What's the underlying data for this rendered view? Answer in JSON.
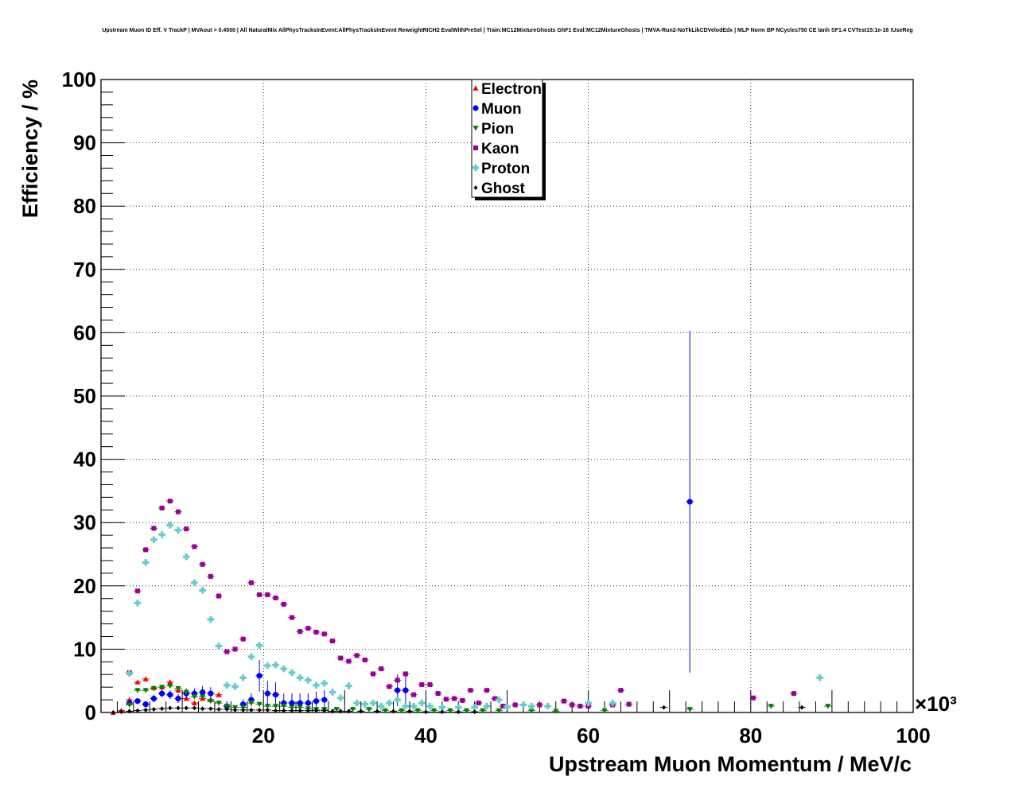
{
  "title": "Upstream Muon ID Eff. V TrackP | MVAout > 0.4500 | All NaturalMix AllPhysTracksInEvent:AllPhysTracksInEvent ReweightRICH2 EvalWithPreSel | Train:MC12MixtureGhosts GhF1 Eval:MC12MixtureGhosts | TMVA-Run2-NoTkLikCDVelodEdx | MLP Norm BP NCycles750 CE tanh SF1.4 CVTest15:1e-16 !UseReg",
  "chart_data": {
    "type": "scatter",
    "title": "Upstream Muon ID Eff. V TrackP | MVAout > 0.4500 | All NaturalMix AllPhysTracksInEvent:AllPhysTracksInEvent ReweightRICH2 EvalWithPreSel | Train:MC12MixtureGhosts GhF1 Eval:MC12MixtureGhosts | TMVA-Run2-NoTkLikCDVelodEdx | MLP Norm BP NCycles750 CE tanh SF1.4 CVTest15:1e-16 !UseReg",
    "xlabel": "Upstream Muon Momentum / MeV/c",
    "ylabel": "Efficiency / %",
    "x_multiplier": "×10³",
    "xlim": [
      0,
      100
    ],
    "ylim": [
      0,
      100
    ],
    "xticks": [
      20,
      40,
      60,
      80,
      100
    ],
    "yticks": [
      0,
      10,
      20,
      30,
      40,
      50,
      60,
      70,
      80,
      90,
      100
    ],
    "grid": true,
    "legend_position": "top-center",
    "series": [
      {
        "name": "Electron",
        "color": "#ff0000",
        "marker": "triangle-up",
        "points": [
          [
            1.5,
            0
          ],
          [
            2.5,
            0.3
          ],
          [
            3.5,
            2.0
          ],
          [
            4.5,
            4.8
          ],
          [
            5.5,
            5.3
          ],
          [
            6.5,
            3.9
          ],
          [
            7.5,
            4.0
          ],
          [
            8.5,
            4.8
          ],
          [
            9.5,
            3.5
          ],
          [
            10.5,
            2.2
          ],
          [
            11.5,
            1.5
          ],
          [
            12.5,
            2.2
          ],
          [
            13.5,
            2.0
          ],
          [
            14.5,
            2.8
          ]
        ]
      },
      {
        "name": "Muon",
        "color": "#0000ff",
        "marker": "circle",
        "points": [
          [
            3.5,
            1.5,
            0.5
          ],
          [
            4.5,
            1.8,
            0.5
          ],
          [
            5.5,
            1.3,
            0.5
          ],
          [
            6.5,
            2.2,
            0.6
          ],
          [
            7.5,
            3.0,
            0.6
          ],
          [
            8.5,
            2.8,
            0.7
          ],
          [
            9.5,
            2.2,
            0.7
          ],
          [
            10.5,
            3.0,
            0.8
          ],
          [
            11.5,
            3.0,
            0.8
          ],
          [
            12.5,
            3.2,
            1.0
          ],
          [
            13.5,
            3.0,
            1.0
          ],
          [
            15.5,
            1.0,
            0.8
          ],
          [
            17.5,
            1.3,
            0.8
          ],
          [
            18.5,
            2.0,
            1.0
          ],
          [
            19.5,
            5.8,
            2.5
          ],
          [
            20.5,
            3.0,
            2.0
          ],
          [
            21.5,
            2.8,
            2.0
          ],
          [
            22.5,
            1.5,
            1.5
          ],
          [
            23.5,
            1.5,
            1.5
          ],
          [
            24.5,
            1.5,
            1.5
          ],
          [
            25.5,
            1.5,
            1.5
          ],
          [
            26.5,
            1.8,
            1.5
          ],
          [
            27.5,
            2.0,
            1.5
          ],
          [
            36.5,
            3.5,
            2.5
          ],
          [
            37.5,
            3.5,
            2.5
          ],
          [
            72.5,
            33.3,
            27.0
          ]
        ]
      },
      {
        "name": "Pion",
        "color": "#008000",
        "marker": "triangle-down",
        "points": [
          [
            3.5,
            1.2
          ],
          [
            4.5,
            3.5
          ],
          [
            5.5,
            3.5
          ],
          [
            6.5,
            3.8
          ],
          [
            7.5,
            4.0
          ],
          [
            8.5,
            4.2
          ],
          [
            9.5,
            3.8
          ],
          [
            10.5,
            3.2
          ],
          [
            11.5,
            2.5
          ],
          [
            12.5,
            2.5
          ],
          [
            13.5,
            1.8
          ],
          [
            14.5,
            1.5
          ],
          [
            15.5,
            1.0
          ],
          [
            16.5,
            0.8
          ],
          [
            17.5,
            0.8
          ],
          [
            18.5,
            1.5
          ],
          [
            19.5,
            1.3
          ],
          [
            20.5,
            1.0
          ],
          [
            21.5,
            1.0
          ],
          [
            22.5,
            1.0
          ],
          [
            23.5,
            0.8
          ],
          [
            24.5,
            0.8
          ],
          [
            25.5,
            0.6
          ],
          [
            26.5,
            0.5
          ],
          [
            27.5,
            0.5
          ],
          [
            29,
            0.5
          ],
          [
            31,
            0.5
          ],
          [
            33,
            0.5
          ],
          [
            35,
            0.3
          ],
          [
            37,
            0.3
          ],
          [
            39,
            0.3
          ],
          [
            41,
            0.3
          ],
          [
            43,
            0.3
          ],
          [
            45,
            0.3
          ],
          [
            47,
            0.3
          ],
          [
            49,
            0.3
          ],
          [
            53,
            0.3
          ],
          [
            56,
            0.2
          ],
          [
            62,
            0.3
          ],
          [
            72.5,
            0.5
          ],
          [
            82.5,
            1.0
          ],
          [
            89.5,
            1.0
          ]
        ]
      },
      {
        "name": "Kaon",
        "color": "#990099",
        "marker": "square",
        "points": [
          [
            3.5,
            6.3
          ],
          [
            4.5,
            19.2
          ],
          [
            5.5,
            25.7
          ],
          [
            6.5,
            29.1
          ],
          [
            7.5,
            32.3
          ],
          [
            8.5,
            33.4
          ],
          [
            9.5,
            31.7
          ],
          [
            10.5,
            29.0
          ],
          [
            11.5,
            26.2
          ],
          [
            12.5,
            23.4
          ],
          [
            13.5,
            21.5
          ],
          [
            14.5,
            18.4
          ],
          [
            15.5,
            9.6
          ],
          [
            16.5,
            10.0
          ],
          [
            17.5,
            11.6
          ],
          [
            18.5,
            20.5
          ],
          [
            19.5,
            18.6
          ],
          [
            20.5,
            18.6
          ],
          [
            21.5,
            18.1
          ],
          [
            22.5,
            17.1
          ],
          [
            23.5,
            15.0
          ],
          [
            24.5,
            12.8
          ],
          [
            25.5,
            13.3
          ],
          [
            26.5,
            12.7
          ],
          [
            27.5,
            12.4
          ],
          [
            28.5,
            11.3
          ],
          [
            29.5,
            8.6
          ],
          [
            30.5,
            8.1
          ],
          [
            31.5,
            9.0
          ],
          [
            32.5,
            8.3
          ],
          [
            33.5,
            6.1
          ],
          [
            34.5,
            6.9
          ],
          [
            35.5,
            4.1
          ],
          [
            36.5,
            5.1
          ],
          [
            37.5,
            6.1
          ],
          [
            38.5,
            2.8
          ],
          [
            39.5,
            4.4
          ],
          [
            40.5,
            4.4
          ],
          [
            41.5,
            3.0
          ],
          [
            42.5,
            2.1
          ],
          [
            43.5,
            2.2
          ],
          [
            44.5,
            1.9
          ],
          [
            45.5,
            3.5
          ],
          [
            46.5,
            1.5
          ],
          [
            47.5,
            3.5
          ],
          [
            48.5,
            2.2
          ],
          [
            49.5,
            1.0
          ],
          [
            51,
            1.2
          ],
          [
            54,
            1.2
          ],
          [
            57,
            1.8
          ],
          [
            58,
            1.2
          ],
          [
            59,
            1.0
          ],
          [
            60,
            1.0
          ],
          [
            63,
            1.2
          ],
          [
            64,
            3.5
          ],
          [
            65,
            1.3
          ],
          [
            80.3,
            2.3
          ],
          [
            85.3,
            3.0
          ]
        ]
      },
      {
        "name": "Proton",
        "color": "#66cccc",
        "marker": "cross",
        "points": [
          [
            3.5,
            6.2
          ],
          [
            4.5,
            17.3
          ],
          [
            5.5,
            23.7
          ],
          [
            6.5,
            27.3
          ],
          [
            7.5,
            28.1
          ],
          [
            8.5,
            29.6
          ],
          [
            9.5,
            28.8
          ],
          [
            10.5,
            24.6
          ],
          [
            11.5,
            20.5
          ],
          [
            12.5,
            19.3
          ],
          [
            13.5,
            14.7
          ],
          [
            14.5,
            10.5
          ],
          [
            15.5,
            4.3
          ],
          [
            16.5,
            4.1
          ],
          [
            17.5,
            5.5
          ],
          [
            18.5,
            8.8
          ],
          [
            19.5,
            10.6
          ],
          [
            20.5,
            7.4
          ],
          [
            21.5,
            7.5
          ],
          [
            22.5,
            6.9
          ],
          [
            23.5,
            6.3
          ],
          [
            24.5,
            5.5
          ],
          [
            25.5,
            5.1
          ],
          [
            26.5,
            4.3
          ],
          [
            27.5,
            4.6
          ],
          [
            28.5,
            3.2
          ],
          [
            29.5,
            2.3
          ],
          [
            30.5,
            4.2
          ],
          [
            31.5,
            1.5
          ],
          [
            32.5,
            1.3
          ],
          [
            33.5,
            1.5
          ],
          [
            34.5,
            1.0
          ],
          [
            35.5,
            1.5
          ],
          [
            36.5,
            2.0
          ],
          [
            37.5,
            1.0
          ],
          [
            38.5,
            1.0
          ],
          [
            39.5,
            1.5
          ],
          [
            40.5,
            1.0
          ],
          [
            42,
            0.8
          ],
          [
            44,
            0.8
          ],
          [
            46,
            0.8
          ],
          [
            47.5,
            1.0
          ],
          [
            49,
            2.0
          ],
          [
            50,
            0.9
          ],
          [
            52,
            1.2
          ],
          [
            53,
            1.0
          ],
          [
            55,
            1.0
          ],
          [
            60,
            1.5
          ],
          [
            63,
            1.5
          ],
          [
            88.5,
            5.5
          ]
        ]
      },
      {
        "name": "Ghost",
        "color": "#000000",
        "marker": "diamond",
        "points": [
          [
            1.5,
            0
          ],
          [
            2.5,
            0.1
          ],
          [
            3.5,
            0.2
          ],
          [
            4.5,
            0.3
          ],
          [
            5.5,
            0.4
          ],
          [
            6.5,
            0.5
          ],
          [
            7.5,
            0.6
          ],
          [
            8.5,
            0.7
          ],
          [
            9.5,
            0.7
          ],
          [
            10.5,
            0.7
          ],
          [
            11.5,
            0.7
          ],
          [
            12.5,
            0.6
          ],
          [
            13.5,
            0.6
          ],
          [
            14.5,
            0.5
          ],
          [
            15.5,
            0.5
          ],
          [
            16.5,
            0.4
          ],
          [
            17.5,
            0.4
          ],
          [
            18.5,
            0.4
          ],
          [
            19.5,
            0.4
          ],
          [
            20.5,
            0.4
          ],
          [
            21.5,
            0.3
          ],
          [
            22.5,
            0.3
          ],
          [
            23.5,
            0.3
          ],
          [
            24.5,
            0.3
          ],
          [
            25.5,
            0.3
          ],
          [
            26.5,
            0.3
          ],
          [
            27.5,
            0.3
          ],
          [
            28.5,
            0.2
          ],
          [
            29.5,
            0.2
          ],
          [
            30.5,
            0.2
          ],
          [
            32,
            0.2
          ],
          [
            34,
            0.2
          ],
          [
            36,
            0.2
          ],
          [
            38,
            0.2
          ],
          [
            40,
            0.1
          ],
          [
            42,
            0.1
          ],
          [
            44,
            0.1
          ],
          [
            46,
            0.1
          ],
          [
            69.3,
            0.8
          ],
          [
            86.3,
            0.8
          ]
        ]
      }
    ]
  }
}
